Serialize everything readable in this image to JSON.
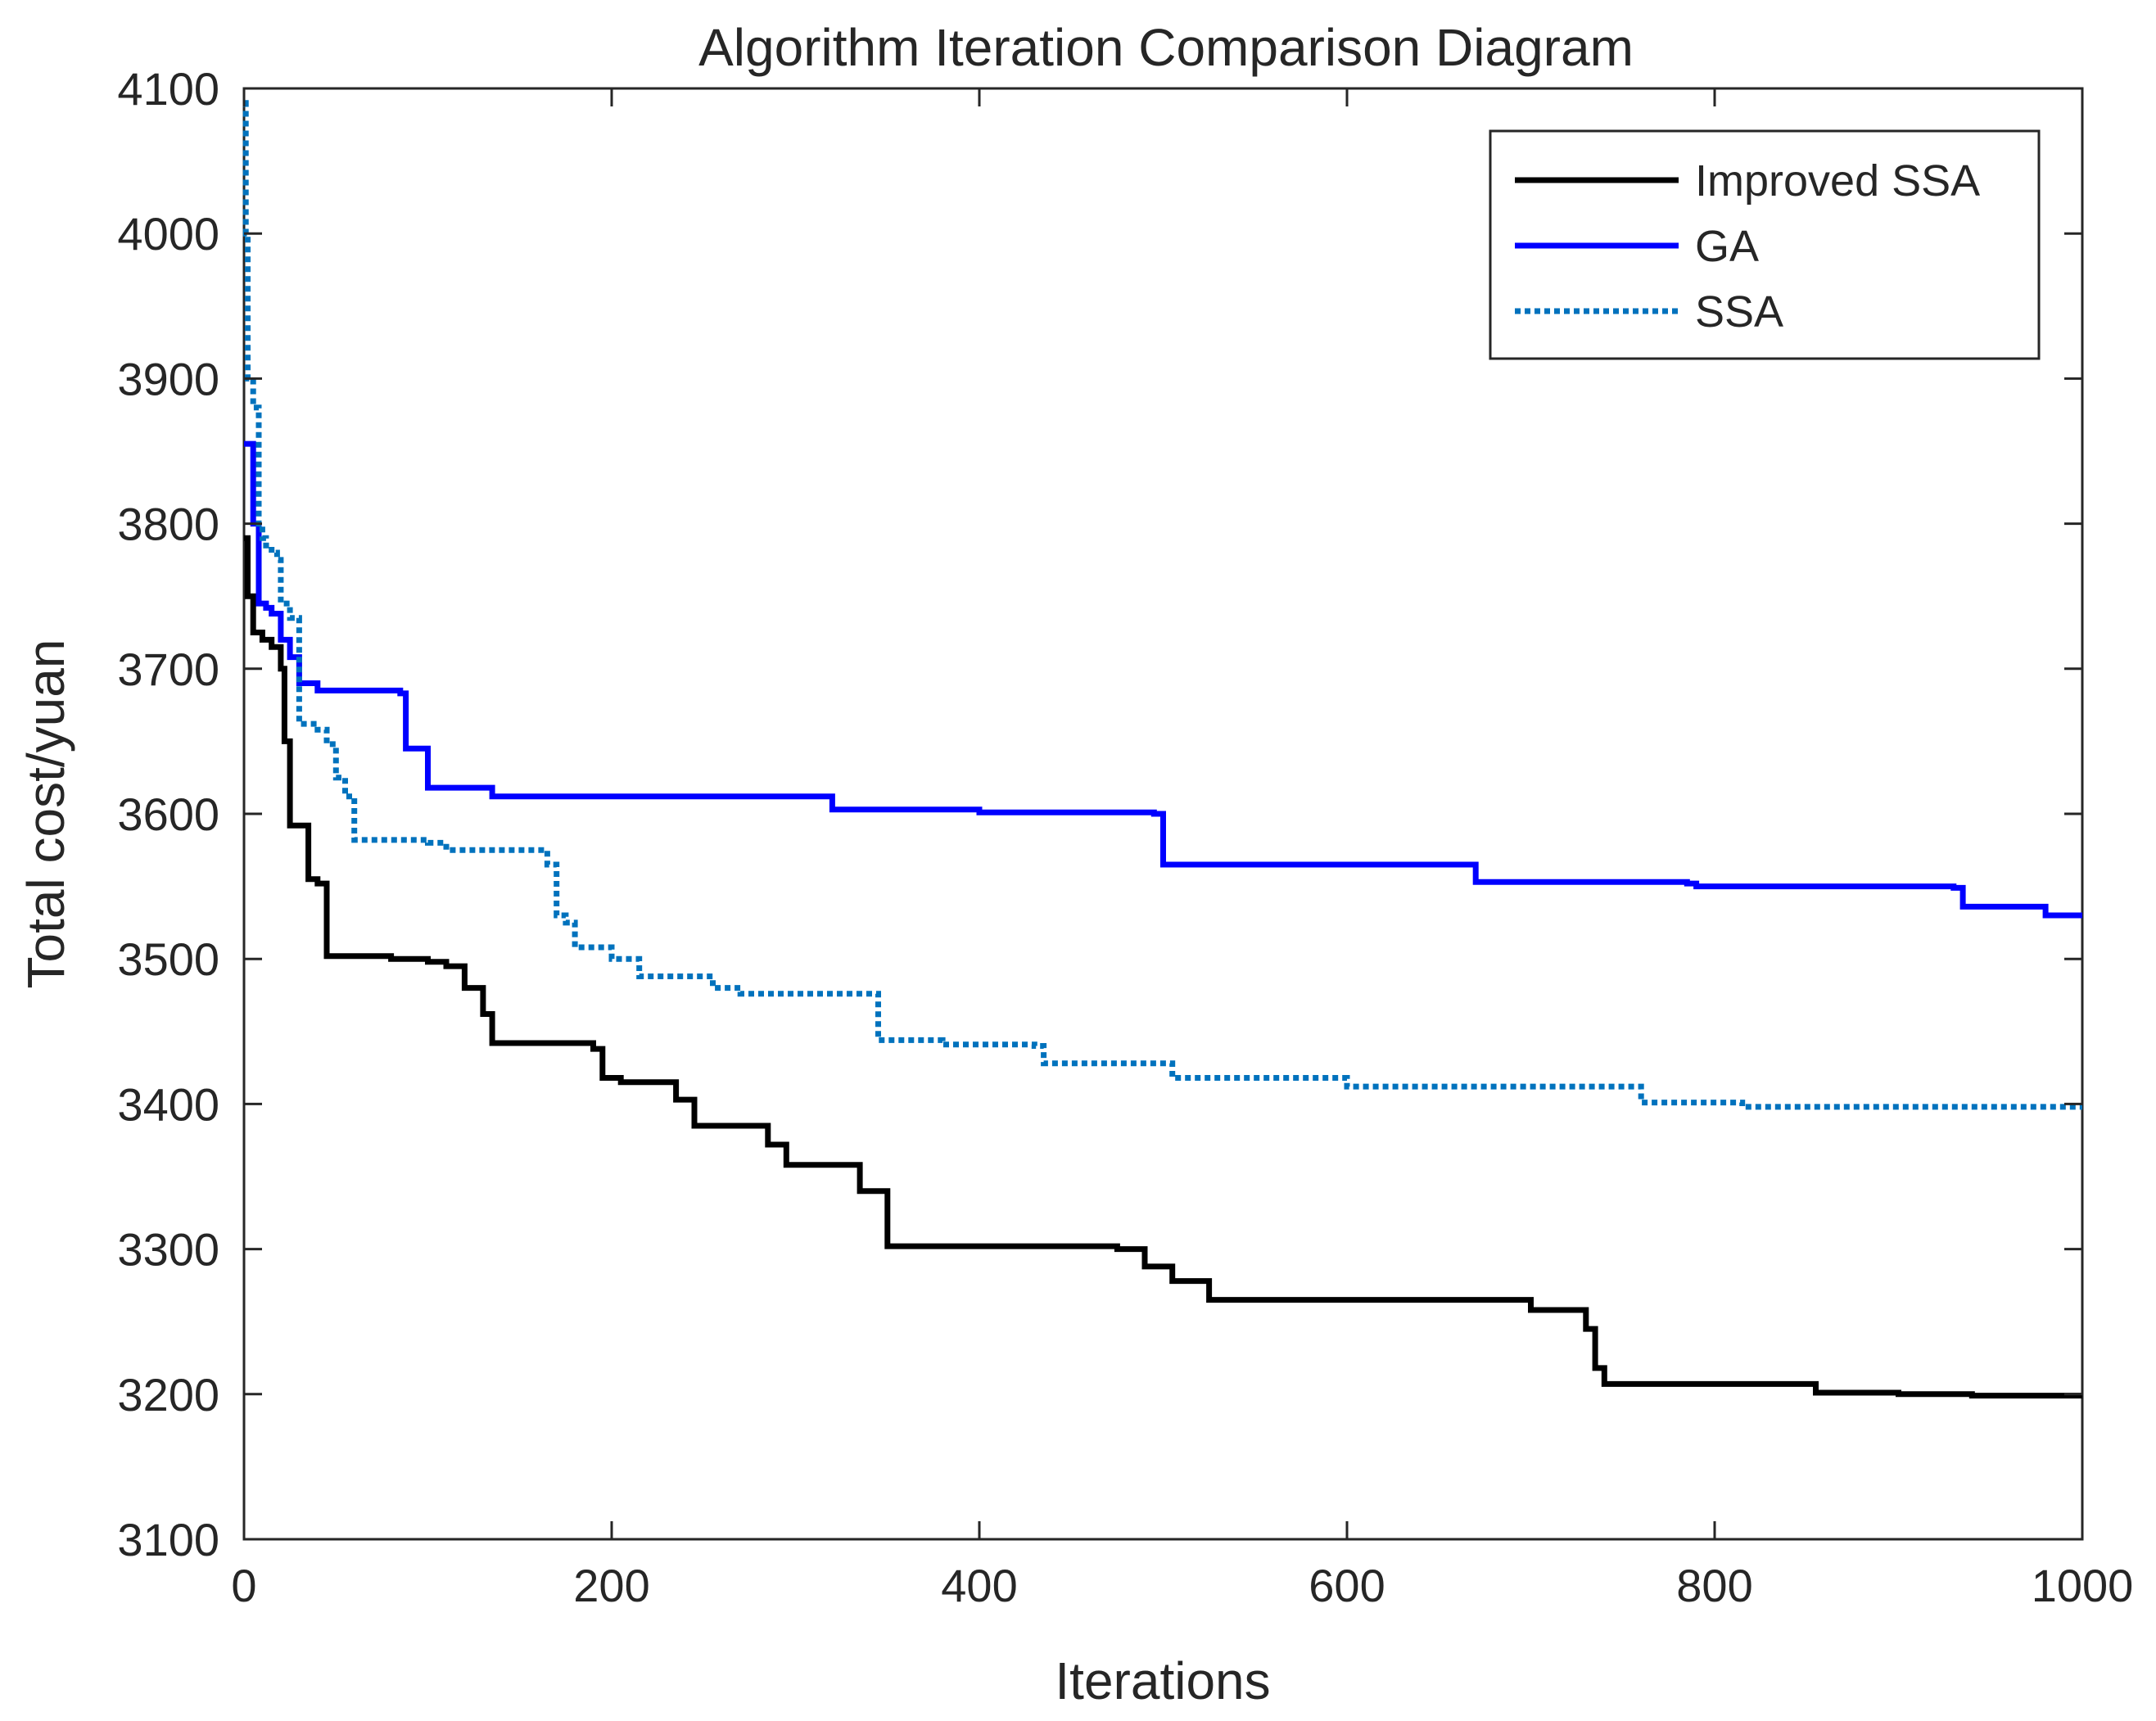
{
  "chart_data": {
    "type": "line",
    "title": "Algorithm Iteration Comparison Diagram",
    "xlabel": "Iterations",
    "ylabel": "Total cost/yuan",
    "xlim": [
      0,
      1000
    ],
    "ylim": [
      3100,
      4100
    ],
    "xticks": [
      0,
      200,
      400,
      600,
      800,
      1000
    ],
    "yticks": [
      3100,
      3200,
      3300,
      3400,
      3500,
      3600,
      3700,
      3800,
      3900,
      4000,
      4100
    ],
    "grid": false,
    "legend_position": "top-right",
    "series": [
      {
        "name": "Improved SSA",
        "color": "#000000",
        "style": "solid",
        "x": [
          0,
          2,
          5,
          10,
          15,
          20,
          22,
          25,
          30,
          35,
          40,
          45,
          60,
          80,
          90,
          100,
          110,
          115,
          120,
          125,
          130,
          135,
          140,
          170,
          190,
          195,
          205,
          230,
          235,
          245,
          275,
          285,
          295,
          330,
          335,
          350,
          360,
          400,
          475,
          490,
          505,
          525,
          600,
          665,
          700,
          725,
          730,
          735,
          740,
          800,
          855,
          900,
          940,
          1000
        ],
        "values": [
          3790,
          3750,
          3725,
          3720,
          3715,
          3700,
          3650,
          3592,
          3592,
          3555,
          3552,
          3502,
          3502,
          3500,
          3500,
          3498,
          3495,
          3495,
          3480,
          3480,
          3462,
          3442,
          3442,
          3442,
          3438,
          3418,
          3415,
          3415,
          3403,
          3385,
          3385,
          3372,
          3358,
          3358,
          3340,
          3302,
          3302,
          3302,
          3300,
          3288,
          3278,
          3265,
          3265,
          3265,
          3258,
          3258,
          3245,
          3218,
          3207,
          3207,
          3201,
          3200,
          3199,
          3199
        ]
      },
      {
        "name": "GA",
        "color": "#0000FF",
        "style": "solid",
        "x": [
          0,
          2,
          5,
          8,
          12,
          15,
          20,
          25,
          30,
          40,
          60,
          85,
          88,
          100,
          135,
          150,
          320,
          400,
          495,
          500,
          665,
          670,
          785,
          790,
          930,
          935,
          980,
          1000
        ],
        "values": [
          3855,
          3855,
          3800,
          3745,
          3742,
          3738,
          3720,
          3708,
          3690,
          3685,
          3685,
          3683,
          3645,
          3618,
          3612,
          3612,
          3603,
          3601,
          3600,
          3565,
          3565,
          3553,
          3552,
          3550,
          3549,
          3536,
          3530,
          3530
        ]
      },
      {
        "name": "SSA",
        "color": "#0072BD",
        "style": "dotted",
        "x": [
          0,
          1,
          2,
          3,
          5,
          6,
          8,
          10,
          12,
          15,
          18,
          20,
          22,
          25,
          30,
          35,
          40,
          45,
          50,
          55,
          60,
          80,
          100,
          110,
          150,
          165,
          170,
          175,
          180,
          195,
          200,
          215,
          235,
          245,
          255,
          270,
          275,
          345,
          350,
          380,
          430,
          435,
          450,
          500,
          505,
          530,
          595,
          600,
          700,
          750,
          760,
          810,
          815,
          1000
        ],
        "values": [
          4090,
          4000,
          3900,
          3900,
          3880,
          3880,
          3800,
          3790,
          3785,
          3780,
          3775,
          3745,
          3745,
          3735,
          3662,
          3662,
          3658,
          3648,
          3625,
          3612,
          3582,
          3582,
          3580,
          3575,
          3575,
          3565,
          3530,
          3525,
          3508,
          3508,
          3500,
          3488,
          3488,
          3488,
          3480,
          3476,
          3476,
          3444,
          3444,
          3441,
          3440,
          3428,
          3428,
          3428,
          3418,
          3418,
          3418,
          3412,
          3412,
          3412,
          3401,
          3401,
          3398,
          3398
        ]
      }
    ]
  }
}
